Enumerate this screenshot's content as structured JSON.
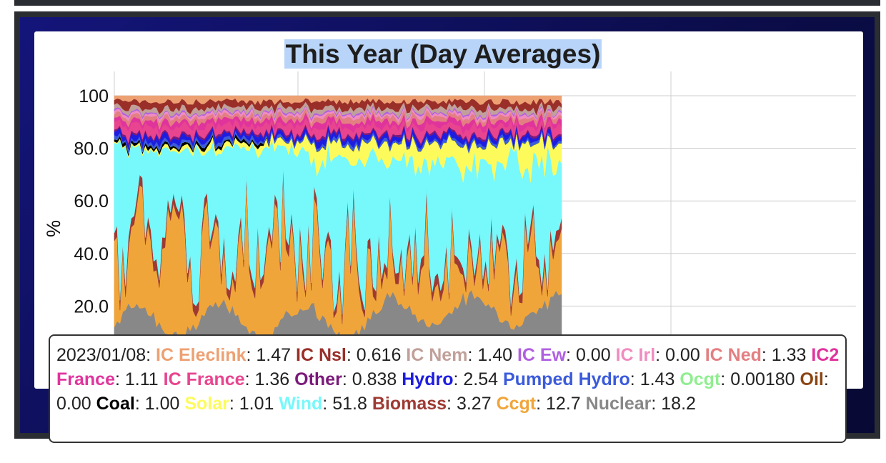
{
  "title": "This Year (Day Averages)",
  "chart_data": {
    "type": "area",
    "title": "This Year (Day Averages)",
    "ylabel": "%",
    "xlabel": "",
    "ylim": [
      0,
      100
    ],
    "yticks": [
      "20.0",
      "40.0",
      "60.0",
      "80.0",
      "100"
    ],
    "grid": true,
    "stacking": "percent",
    "x_start": "2023/01/01",
    "day_count": 160,
    "series": [
      {
        "name": "Nuclear",
        "color": "#888888"
      },
      {
        "name": "Ccgt",
        "color": "#f0a53a"
      },
      {
        "name": "Biomass",
        "color": "#9e3a33"
      },
      {
        "name": "Wind",
        "color": "#77f8fb"
      },
      {
        "name": "Solar",
        "color": "#fdfb5c"
      },
      {
        "name": "Coal",
        "color": "#000000"
      },
      {
        "name": "Oil",
        "color": "#8b4513"
      },
      {
        "name": "Ocgt",
        "color": "#90ee90"
      },
      {
        "name": "Pumped Hydro",
        "color": "#3b5bdb"
      },
      {
        "name": "Hydro",
        "color": "#1d1de0"
      },
      {
        "name": "Other",
        "color": "#7a1a7a"
      },
      {
        "name": "IC France",
        "color": "#e8448f"
      },
      {
        "name": "IC2 France",
        "color": "#e0349c"
      },
      {
        "name": "IC Ned",
        "color": "#e37f82"
      },
      {
        "name": "IC Irl",
        "color": "#f08cc0"
      },
      {
        "name": "IC Ew",
        "color": "#b160e0"
      },
      {
        "name": "IC Nem",
        "color": "#c2a09a"
      },
      {
        "name": "IC Nsl",
        "color": "#9a2e28"
      },
      {
        "name": "IC Eleclink",
        "color": "#eda173"
      }
    ]
  },
  "tooltip": {
    "date": "2023/01/08",
    "items": [
      {
        "name": "IC Eleclink",
        "value": "1.47",
        "color": "#eda173"
      },
      {
        "name": "IC Nsl",
        "value": "0.616",
        "color": "#9a2e28"
      },
      {
        "name": "IC Nem",
        "value": "1.40",
        "color": "#c2a09a"
      },
      {
        "name": "IC Ew",
        "value": "0.00",
        "color": "#b160e0"
      },
      {
        "name": "IC Irl",
        "value": "0.00",
        "color": "#f08cc0"
      },
      {
        "name": "IC Ned",
        "value": "1.33",
        "color": "#e37f82"
      },
      {
        "name": "IC2 France",
        "value": "1.11",
        "color": "#e0349c"
      },
      {
        "name": "IC France",
        "value": "1.36",
        "color": "#e8448f"
      },
      {
        "name": "Other",
        "value": "0.838",
        "color": "#7a1a7a"
      },
      {
        "name": "Hydro",
        "value": "2.54",
        "color": "#1d1de0"
      },
      {
        "name": "Pumped Hydro",
        "value": "1.43",
        "color": "#3b5bdb"
      },
      {
        "name": "Ocgt",
        "value": "0.00180",
        "color": "#90ee90"
      },
      {
        "name": "Oil",
        "value": "0.00",
        "color": "#8b4513"
      },
      {
        "name": "Coal",
        "value": "1.00",
        "color": "#000000"
      },
      {
        "name": "Solar",
        "value": "1.01",
        "color": "#fdfb5c"
      },
      {
        "name": "Wind",
        "value": "51.8",
        "color": "#77f8fb"
      },
      {
        "name": "Biomass",
        "value": "3.27",
        "color": "#9e3a33"
      },
      {
        "name": "Ccgt",
        "value": "12.7",
        "color": "#f0a53a"
      },
      {
        "name": "Nuclear",
        "value": "18.2",
        "color": "#888888"
      }
    ]
  }
}
